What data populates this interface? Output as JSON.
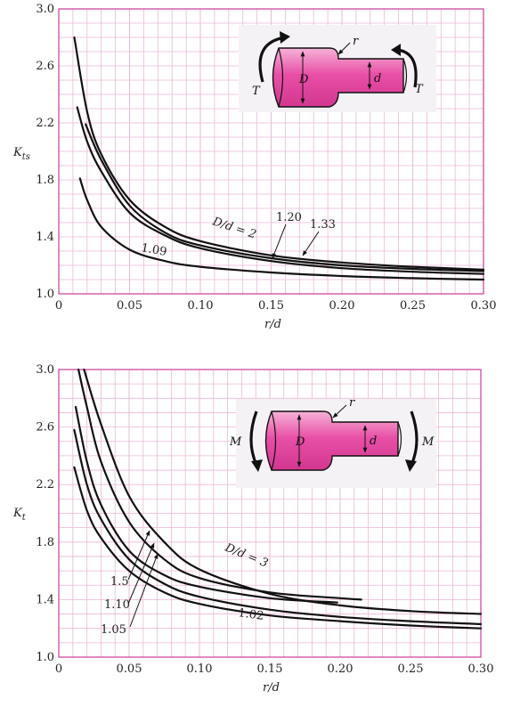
{
  "colors": {
    "grid": "#eeb7d6",
    "frame": "#cc3b98",
    "curve": "#111111",
    "shaft": "#e84fa6",
    "shaft_light": "#f6b2d8",
    "panel": "#f4f2f4"
  },
  "chart_data": [
    {
      "type": "line",
      "title": "",
      "xlabel": "r/d",
      "ylabel": "K_ts",
      "ylabel_main": "K",
      "ylabel_sub": "ts",
      "xlim": [
        0,
        0.3
      ],
      "ylim": [
        1.0,
        3.0
      ],
      "xticks": [
        "0",
        "0.05",
        "0.10",
        "0.15",
        "0.20",
        "0.25",
        "0.30"
      ],
      "yticks": [
        "1.0",
        "1.4",
        "1.8",
        "2.2",
        "2.6",
        "3.0"
      ],
      "grid": true,
      "diagram": {
        "torque": "T",
        "big_diameter": "D",
        "small_diameter": "d",
        "fillet": "r"
      },
      "series": [
        {
          "name": "D/d = 2",
          "x": [
            0.011,
            0.02,
            0.03,
            0.05,
            0.075,
            0.1,
            0.15,
            0.2,
            0.25,
            0.3
          ],
          "y": [
            2.8,
            2.28,
            1.98,
            1.66,
            1.47,
            1.37,
            1.27,
            1.22,
            1.19,
            1.17
          ]
        },
        {
          "name": "1.33",
          "x": [
            0.019,
            0.03,
            0.05,
            0.075,
            0.1,
            0.15,
            0.2,
            0.25,
            0.3
          ],
          "y": [
            2.19,
            1.94,
            1.62,
            1.43,
            1.34,
            1.25,
            1.2,
            1.175,
            1.16
          ]
        },
        {
          "name": "1.20",
          "x": [
            0.013,
            0.02,
            0.03,
            0.05,
            0.075,
            0.1,
            0.15,
            0.2,
            0.25,
            0.3
          ],
          "y": [
            2.31,
            2.07,
            1.86,
            1.57,
            1.41,
            1.32,
            1.23,
            1.18,
            1.155,
            1.14
          ]
        },
        {
          "name": "1.09",
          "x": [
            0.015,
            0.02,
            0.03,
            0.05,
            0.075,
            0.1,
            0.15,
            0.2,
            0.25,
            0.3
          ],
          "y": [
            1.81,
            1.66,
            1.47,
            1.31,
            1.23,
            1.19,
            1.15,
            1.125,
            1.11,
            1.1
          ]
        }
      ],
      "labels": [
        "D/d = 2",
        "1.20",
        "1.33",
        "1.09"
      ]
    },
    {
      "type": "line",
      "title": "",
      "xlabel": "r/d",
      "ylabel": "K_t",
      "ylabel_main": "K",
      "ylabel_sub": "t",
      "xlim": [
        0,
        0.3
      ],
      "ylim": [
        1.0,
        3.0
      ],
      "xticks": [
        "0",
        "0.05",
        "0.10",
        "0.15",
        "0.20",
        "0.25",
        "0.30"
      ],
      "yticks": [
        "1.0",
        "1.4",
        "1.8",
        "2.2",
        "2.6",
        "3.0"
      ],
      "grid": true,
      "diagram": {
        "moment": "M",
        "big_diameter": "D",
        "small_diameter": "d",
        "fillet": "r"
      },
      "series": [
        {
          "name": "D/d = 3",
          "x": [
            0.018,
            0.03,
            0.05,
            0.075,
            0.1,
            0.15,
            0.2,
            0.25,
            0.3
          ],
          "y": [
            3.0,
            2.62,
            2.12,
            1.8,
            1.61,
            1.44,
            1.36,
            1.32,
            1.3
          ]
        },
        {
          "name": "1.5",
          "x": [
            0.014,
            0.02,
            0.03,
            0.05,
            0.075,
            0.1,
            0.15,
            0.2,
            0.215
          ],
          "y": [
            3.0,
            2.74,
            2.36,
            1.94,
            1.68,
            1.55,
            1.45,
            1.41,
            1.4
          ]
        },
        {
          "name": "1.10",
          "x": [
            0.012,
            0.02,
            0.03,
            0.05,
            0.075,
            0.1,
            0.15,
            0.198
          ],
          "y": [
            2.74,
            2.36,
            2.06,
            1.74,
            1.57,
            1.49,
            1.41,
            1.38
          ]
        },
        {
          "name": "1.05",
          "x": [
            0.011,
            0.02,
            0.03,
            0.05,
            0.075,
            0.1,
            0.15,
            0.2,
            0.25,
            0.3
          ],
          "y": [
            2.58,
            2.2,
            1.96,
            1.68,
            1.51,
            1.42,
            1.33,
            1.28,
            1.25,
            1.23
          ]
        },
        {
          "name": "1.02",
          "x": [
            0.011,
            0.02,
            0.03,
            0.05,
            0.075,
            0.1,
            0.15,
            0.2,
            0.25,
            0.3
          ],
          "y": [
            2.32,
            2.02,
            1.83,
            1.6,
            1.45,
            1.37,
            1.29,
            1.25,
            1.22,
            1.2
          ]
        }
      ],
      "labels": [
        "D/d = 3",
        "1.5",
        "1.10",
        "1.05",
        "1.02"
      ]
    }
  ]
}
